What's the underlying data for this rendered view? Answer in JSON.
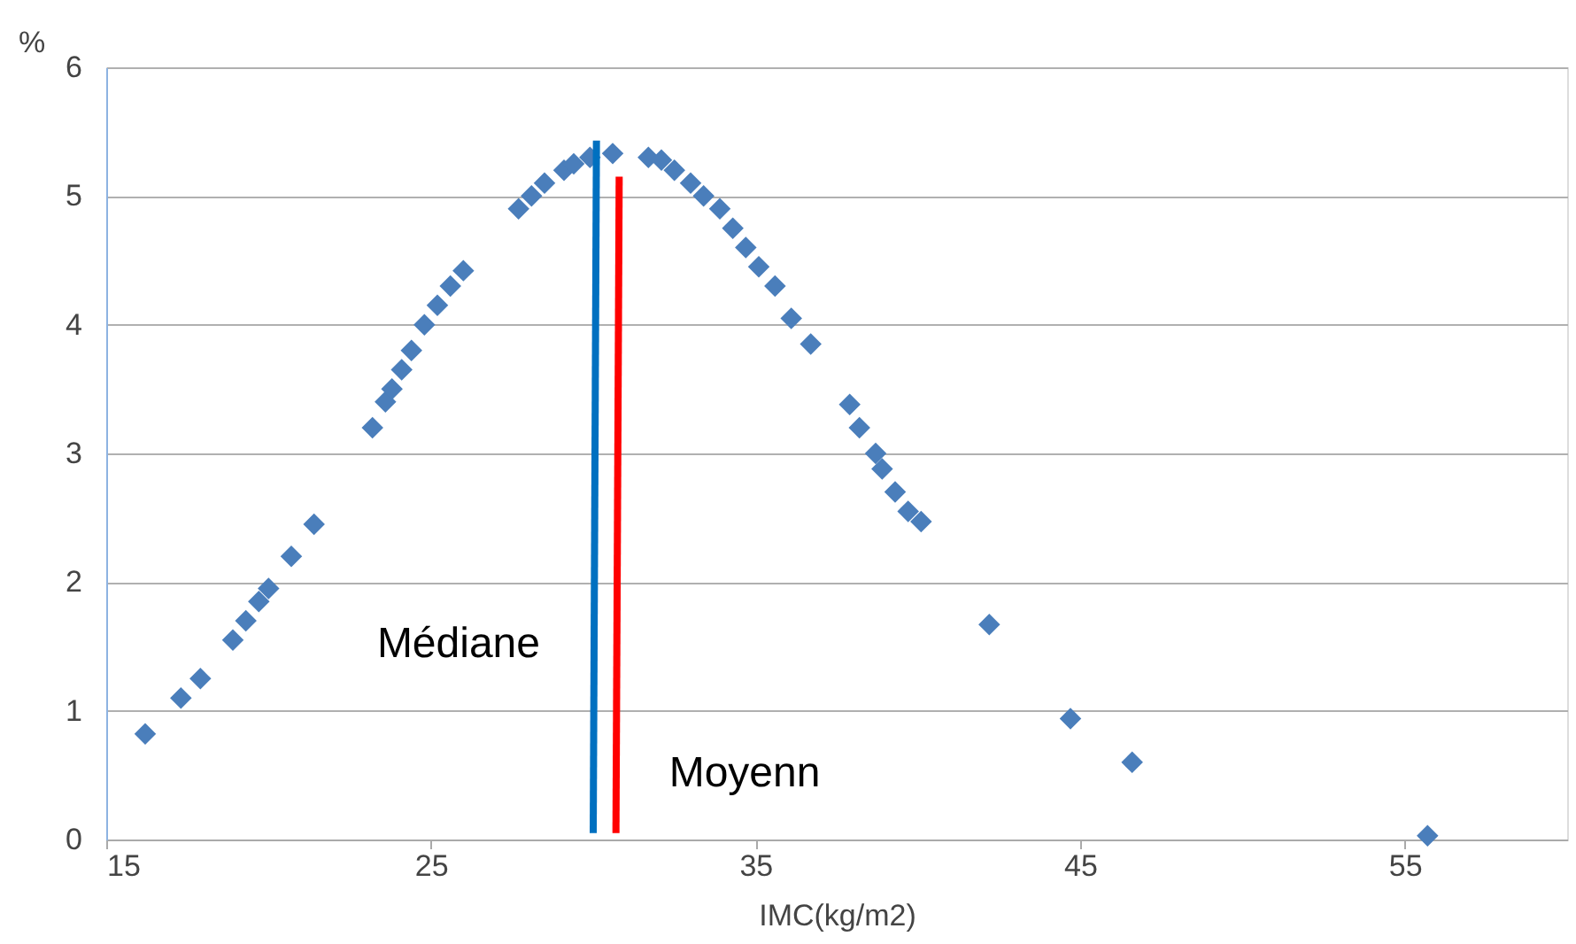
{
  "chart_data": {
    "type": "scatter",
    "xlabel": "IMC(kg/m2)",
    "ylabel": "%",
    "xlim": [
      15,
      60
    ],
    "xticks": [
      15,
      25,
      35,
      45,
      55
    ],
    "ylim": [
      0,
      6
    ],
    "yticks": [
      0,
      1,
      2,
      3,
      4,
      5,
      6
    ],
    "grid": "y",
    "marker": "diamond",
    "series": [
      {
        "color": "#4a7ebb",
        "x": [
          16.2,
          17.3,
          17.9,
          18.9,
          19.3,
          19.7,
          20.0,
          20.7,
          21.4,
          23.2,
          23.6,
          23.8,
          24.1,
          24.4,
          24.8,
          25.2,
          25.6,
          26.0,
          27.7,
          28.1,
          28.5,
          29.1,
          29.4,
          29.9,
          30.6,
          31.7,
          32.1,
          32.5,
          33.0,
          33.4,
          33.9,
          34.3,
          34.7,
          35.1,
          35.6,
          36.1,
          36.7,
          37.9,
          38.2,
          38.7,
          38.9,
          39.3,
          39.7,
          40.1,
          42.2,
          44.7,
          46.6,
          55.7
        ],
        "values": [
          0.82,
          1.1,
          1.25,
          1.55,
          1.7,
          1.85,
          1.95,
          2.2,
          2.45,
          3.2,
          3.4,
          3.5,
          3.65,
          3.8,
          4.0,
          4.15,
          4.3,
          4.42,
          4.9,
          5.0,
          5.1,
          5.2,
          5.25,
          5.3,
          5.33,
          5.3,
          5.28,
          5.2,
          5.1,
          5.0,
          4.9,
          4.75,
          4.6,
          4.45,
          4.3,
          4.05,
          3.85,
          3.38,
          3.2,
          3.0,
          2.88,
          2.7,
          2.55,
          2.47,
          1.67,
          0.94,
          0.6,
          0.03
        ]
      },
      {
        "type": "line",
        "name": "Médiane",
        "marker": "none",
        "line_style": "solid",
        "color": "#0070c0",
        "x": [
          30.0,
          30.1
        ],
        "values": [
          0.05,
          5.43
        ]
      },
      {
        "type": "line",
        "name": "Moyenn",
        "marker": "none",
        "line_style": "solid",
        "color": "#ff0000",
        "x": [
          30.7,
          30.8
        ],
        "values": [
          0.05,
          5.15
        ]
      }
    ]
  }
}
